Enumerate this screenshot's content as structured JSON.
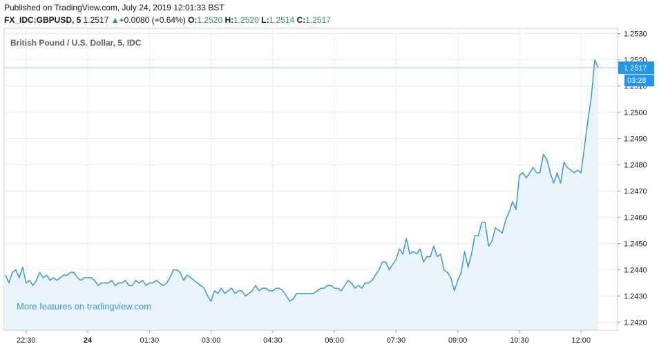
{
  "header": {
    "published": "Published on TradingView.com, July 24, 2019 12:01:33 BST",
    "symbol": "FX_IDC:GBPUSD, 5",
    "last": "1.2517",
    "up_arrow": "▲",
    "change": "+0.0080 (+0.64%)",
    "o_label": "O:",
    "o_value": "1.2520",
    "h_label": "H:",
    "h_value": "1.2520",
    "l_label": "L:",
    "l_value": "1.2514",
    "c_label": "C:",
    "c_value": "1.2517"
  },
  "colors": {
    "line": "#3a96dd",
    "fill": "#eaf4fc",
    "price_label_bg": "#2196f3",
    "up": "#2a9d55",
    "grid": "#e9ecf0",
    "watermark": "#3a96dd"
  },
  "chart_data": {
    "type": "area",
    "title": "British Pound / U.S. Dollar, 5, IDC",
    "watermark": "More features on tradingview.com",
    "ylim": [
      1.2417,
      1.2532
    ],
    "y_ticks": [
      "1.2530",
      "1.2520",
      "1.2510",
      "1.2500",
      "1.2490",
      "1.2480",
      "1.2470",
      "1.2460",
      "1.2450",
      "1.2440",
      "1.2430",
      "1.2420"
    ],
    "x_ticks": [
      "22:30",
      "24",
      "01:30",
      "03:00",
      "04:30",
      "06:00",
      "07:30",
      "09:00",
      "10:30",
      "12:00"
    ],
    "x_tick_index": [
      6,
      24,
      42,
      60,
      78,
      96,
      114,
      132,
      150,
      168
    ],
    "current_price": "1.2517",
    "countdown": "03:28",
    "values": [
      1.2438,
      1.2435,
      1.2439,
      1.244,
      1.2437,
      1.2441,
      1.2435,
      1.2436,
      1.2434,
      1.2436,
      1.2439,
      1.2437,
      1.2438,
      1.2436,
      1.2437,
      1.2436,
      1.2437,
      1.2438,
      1.2438,
      1.2439,
      1.2439,
      1.2437,
      1.2436,
      1.2437,
      1.2437,
      1.2437,
      1.2436,
      1.2434,
      1.2435,
      1.2435,
      1.2435,
      1.2436,
      1.2434,
      1.2435,
      1.2435,
      1.2436,
      1.2434,
      1.2434,
      1.2436,
      1.2435,
      1.2436,
      1.2434,
      1.2435,
      1.2435,
      1.2436,
      1.2435,
      1.2434,
      1.2435,
      1.2437,
      1.244,
      1.244,
      1.2439,
      1.2436,
      1.2438,
      1.2437,
      1.2436,
      1.2435,
      1.2434,
      1.2433,
      1.243,
      1.2428,
      1.2432,
      1.2431,
      1.2433,
      1.2431,
      1.2432,
      1.2433,
      1.2431,
      1.2432,
      1.2432,
      1.243,
      1.2431,
      1.2432,
      1.2434,
      1.2432,
      1.2433,
      1.2433,
      1.2432,
      1.2432,
      1.2433,
      1.2433,
      1.2432,
      1.243,
      1.2428,
      1.2429,
      1.2431,
      1.2431,
      1.2431,
      1.2431,
      1.2431,
      1.2431,
      1.2432,
      1.2433,
      1.2433,
      1.2434,
      1.2434,
      1.2433,
      1.2433,
      1.2432,
      1.2434,
      1.2436,
      1.2435,
      1.2433,
      1.2434,
      1.2433,
      1.2435,
      1.2435,
      1.2436,
      1.2438,
      1.244,
      1.2443,
      1.2443,
      1.244,
      1.2442,
      1.2444,
      1.2448,
      1.2446,
      1.2452,
      1.2446,
      1.2447,
      1.2446,
      1.2448,
      1.2443,
      1.2445,
      1.2445,
      1.2449,
      1.2445,
      1.2446,
      1.244,
      1.2439,
      1.2437,
      1.2432,
      1.2436,
      1.2439,
      1.2447,
      1.2441,
      1.2446,
      1.2453,
      1.2453,
      1.2458,
      1.2458,
      1.2449,
      1.2451,
      1.2456,
      1.2455,
      1.2454,
      1.2459,
      1.2462,
      1.2466,
      1.2463,
      1.2476,
      1.2477,
      1.2475,
      1.2477,
      1.2479,
      1.2477,
      1.2477,
      1.2484,
      1.2482,
      1.2477,
      1.2473,
      1.2477,
      1.2473,
      1.2481,
      1.2479,
      1.2478,
      1.2477,
      1.2478,
      1.2477,
      1.2487,
      1.2497,
      1.2506,
      1.252,
      1.2517
    ]
  }
}
